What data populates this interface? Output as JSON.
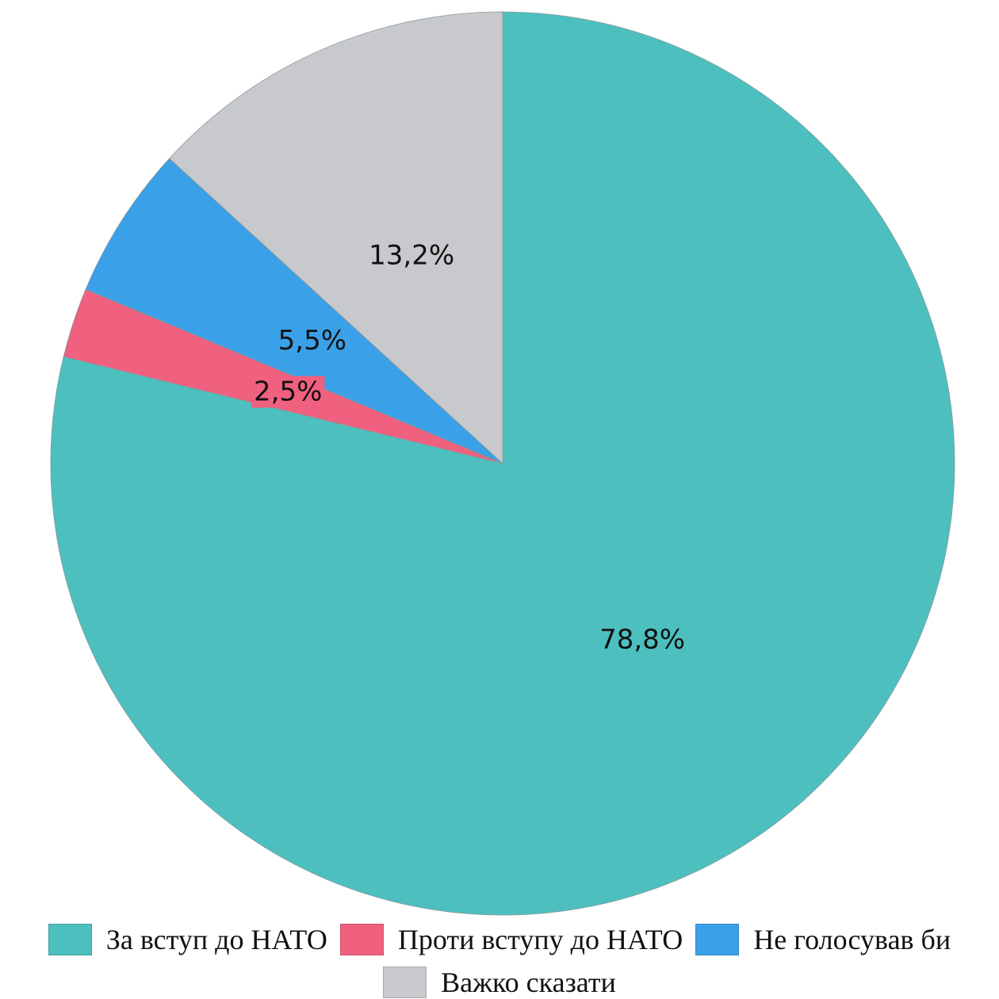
{
  "chart_data": {
    "type": "pie",
    "categories": [
      "За вступ до НАТО",
      "Проти вступу до НАТО",
      "Не голосував би",
      "Важко сказати"
    ],
    "values": [
      78.8,
      2.5,
      5.5,
      13.2
    ],
    "value_labels": [
      "78,8%",
      "2,5%",
      "5,5%",
      "13,2%"
    ],
    "colors": [
      "#4dbfbf",
      "#f0607f",
      "#3aa0e8",
      "#c8c9cd"
    ]
  }
}
